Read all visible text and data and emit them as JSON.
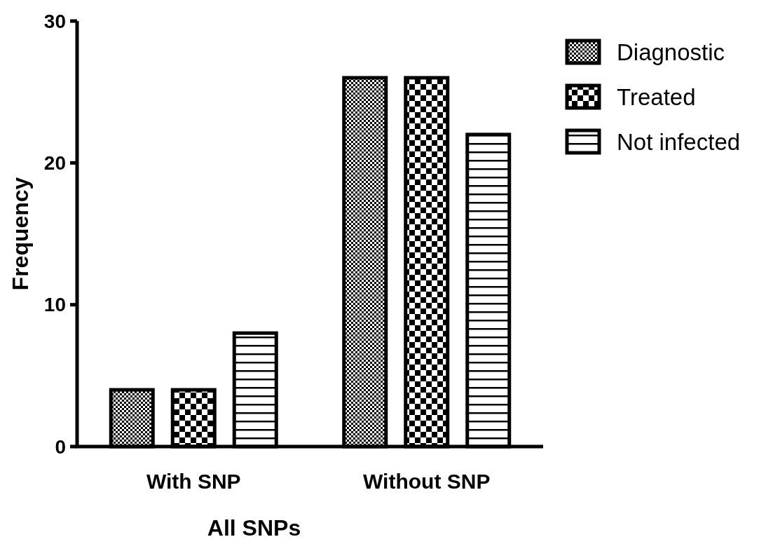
{
  "chart_data": {
    "type": "bar",
    "xlabel": "All SNPs",
    "ylabel": "Frequency",
    "categories": [
      "With SNP",
      "Without SNP"
    ],
    "series": [
      {
        "name": "Diagnostic",
        "color": "#000000",
        "values": [
          4,
          26
        ]
      },
      {
        "name": "Treated",
        "color": "#000000",
        "values": [
          4,
          26
        ]
      },
      {
        "name": "Not infected",
        "color": "#000000",
        "values": [
          8,
          22
        ]
      }
    ],
    "ylim": [
      0,
      30
    ],
    "yticks": [
      0,
      10,
      20,
      30
    ],
    "grid": false,
    "legend": "top right"
  }
}
